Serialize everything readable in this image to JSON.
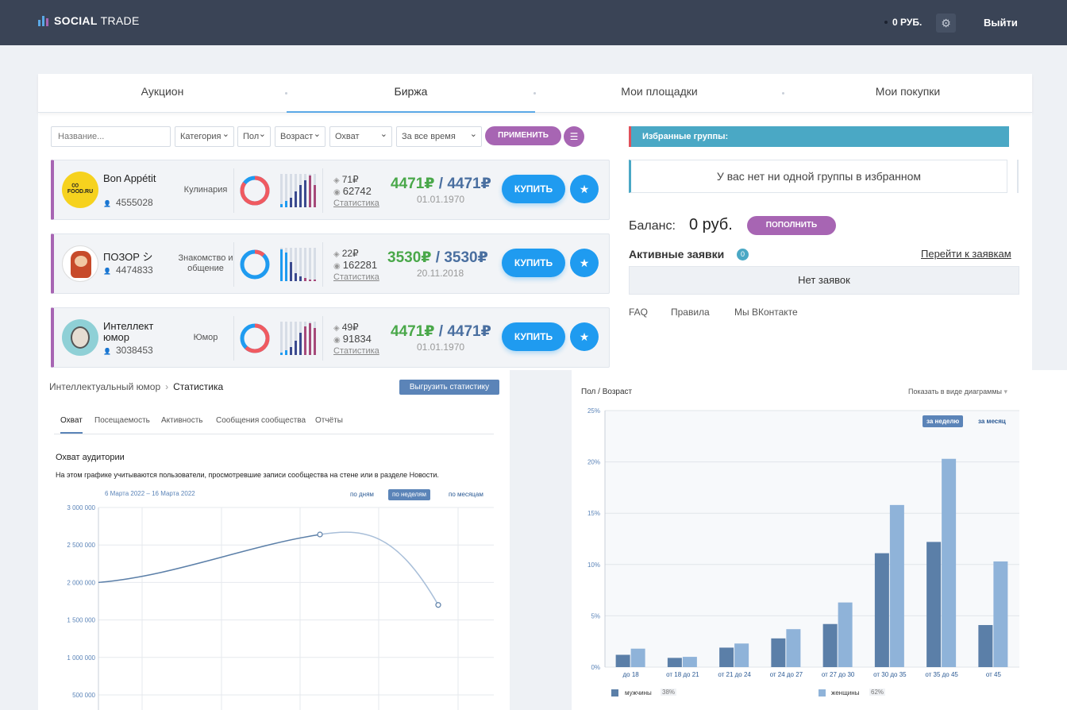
{
  "header": {
    "logo_bold": "SOCIAL",
    "logo_light": "TRADE",
    "balance": "0 РУБ.",
    "logout": "Выйти"
  },
  "tabs": [
    "Аукцион",
    "Биржа",
    "Мои площадки",
    "Мои покупки"
  ],
  "active_tab": "Биржа",
  "filters": {
    "name_placeholder": "Название...",
    "category": "Категория",
    "gender": "Пол",
    "age": "Возраст",
    "reach": "Охват",
    "time": "За все время",
    "apply": "ПРИМЕНИТЬ"
  },
  "groups": [
    {
      "name": "Bon Appétit",
      "subscribers": "4555028",
      "category": "Кулинария",
      "post_price": "71₽",
      "views": "62742",
      "stats_link": "Статистика",
      "price_a": "4471₽",
      "price_b": "4471₽",
      "date": "01.01.1970",
      "buy": "КУПИТЬ",
      "avatar_text": "FOOD.RU",
      "donut_fraction": 0.85
    },
    {
      "name": "ПОЗОР シ",
      "subscribers": "4474833",
      "category": "Знакомство и общение",
      "post_price": "22₽",
      "views": "162281",
      "stats_link": "Статистика",
      "price_a": "3530₽",
      "price_b": "3530₽",
      "date": "20.11.2018",
      "buy": "КУПИТЬ",
      "avatar_text": "",
      "donut_fraction": 0.12
    },
    {
      "name": "Интеллект юмор",
      "subscribers": "3038453",
      "category": "Юмор",
      "post_price": "49₽",
      "views": "91834",
      "stats_link": "Статистика",
      "price_a": "4471₽",
      "price_b": "4471₽",
      "date": "01.01.1970",
      "buy": "КУПИТЬ",
      "avatar_text": "",
      "donut_fraction": 0.62
    }
  ],
  "sidebar": {
    "fav_title": "Избранные группы:",
    "fav_empty": "У вас нет ни одной группы в избранном",
    "balance_label": "Баланс:",
    "balance_value": "0 руб.",
    "topup": "ПОПОЛНИТЬ",
    "active_label": "Активные заявки",
    "active_count": "0",
    "active_link": "Перейти к заявкам",
    "no_requests": "Нет заявок",
    "footer_links": [
      "FAQ",
      "Правила",
      "Мы ВКонтакте"
    ]
  },
  "stats": {
    "breadcrumb_group": "Интеллектуальный юмор",
    "breadcrumb_page": "Статистика",
    "export": "Выгрузить статистику",
    "tabs": [
      "Охват",
      "Посещаемость",
      "Активность",
      "Сообщения сообщества",
      "Отчёты"
    ],
    "reach_title": "Охват аудитории",
    "reach_desc": "На этом графике учитываются пользователи, просмотревшие записи сообщества на стене или в разделе Новости.",
    "range": "6 Марта 2022 – 16 Марта 2022",
    "periods": [
      "по дням",
      "по неделям",
      "по месяцам"
    ]
  },
  "demo": {
    "title": "Пол / Возраст",
    "switch": "Показать в виде диаграммы",
    "periods": [
      "за неделю",
      "за месяц"
    ],
    "legend": [
      {
        "label": "мужчины",
        "pct": "38%",
        "color": "#5b7fa8"
      },
      {
        "label": "женщины",
        "pct": "62%",
        "color": "#8fb3d9"
      }
    ]
  },
  "chart_data": [
    {
      "type": "line",
      "title": "Охват аудитории",
      "y_ticks": [
        "3 000 000",
        "2 500 000",
        "2 000 000",
        "1 500 000",
        "1 000 000",
        "500 000"
      ],
      "ylim": [
        500000,
        3000000
      ],
      "series": [
        {
          "values": [
            2000000,
            2640000,
            1700000
          ]
        }
      ],
      "grid": true
    },
    {
      "type": "bar",
      "categories": [
        "до 18",
        "от 18 до 21",
        "от 21 до 24",
        "от 24 до 27",
        "от 27 до 30",
        "от 30 до 35",
        "от 35 до 45",
        "от 45"
      ],
      "series": [
        {
          "name": "мужчины",
          "values": [
            1.2,
            0.9,
            1.9,
            2.8,
            4.2,
            11.1,
            12.2,
            4.1
          ]
        },
        {
          "name": "женщины",
          "values": [
            1.8,
            1.0,
            2.3,
            3.7,
            6.3,
            15.8,
            20.3,
            10.3
          ]
        }
      ],
      "y_ticks": [
        "25%",
        "20%",
        "15%",
        "10%",
        "5%",
        "0%"
      ],
      "ylim": [
        0,
        25
      ],
      "grid": true
    }
  ]
}
